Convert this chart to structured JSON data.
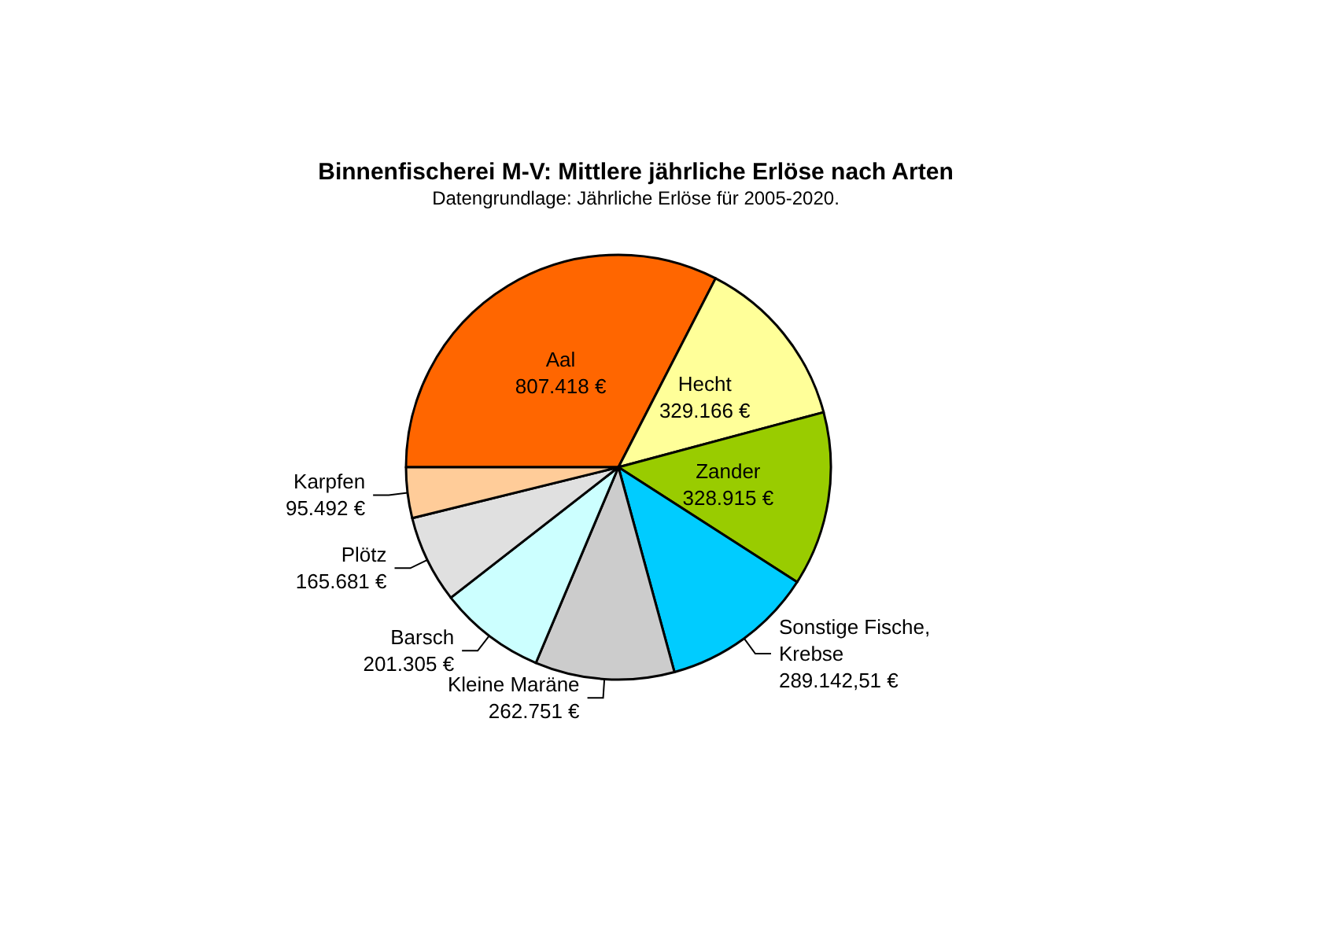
{
  "chart_data": {
    "type": "pie",
    "title": "Binnenfischerei M-V: Mittlere jährliche Erlöse nach Arten",
    "subtitle": "Datengrundlage: Jährliche Erlöse für 2005-2020.",
    "categories": [
      "Aal",
      "Hecht",
      "Zander",
      "Sonstige Fische, Krebse",
      "Kleine Maräne",
      "Barsch",
      "Plötz",
      "Karpfen"
    ],
    "values": [
      807418,
      329166,
      328915,
      289142.51,
      262751,
      201305,
      165681,
      95492
    ],
    "value_labels": [
      "807.418 €",
      "329.166 €",
      "328.915 €",
      "289.142,51 €",
      "262.751 €",
      "201.305 €",
      "165.681 €",
      "95.492 €"
    ],
    "colors": [
      "#ff6600",
      "#ffff99",
      "#99cc00",
      "#00ccff",
      "#cccccc",
      "#ccffff",
      "#e0e0e0",
      "#ffcc99"
    ]
  }
}
